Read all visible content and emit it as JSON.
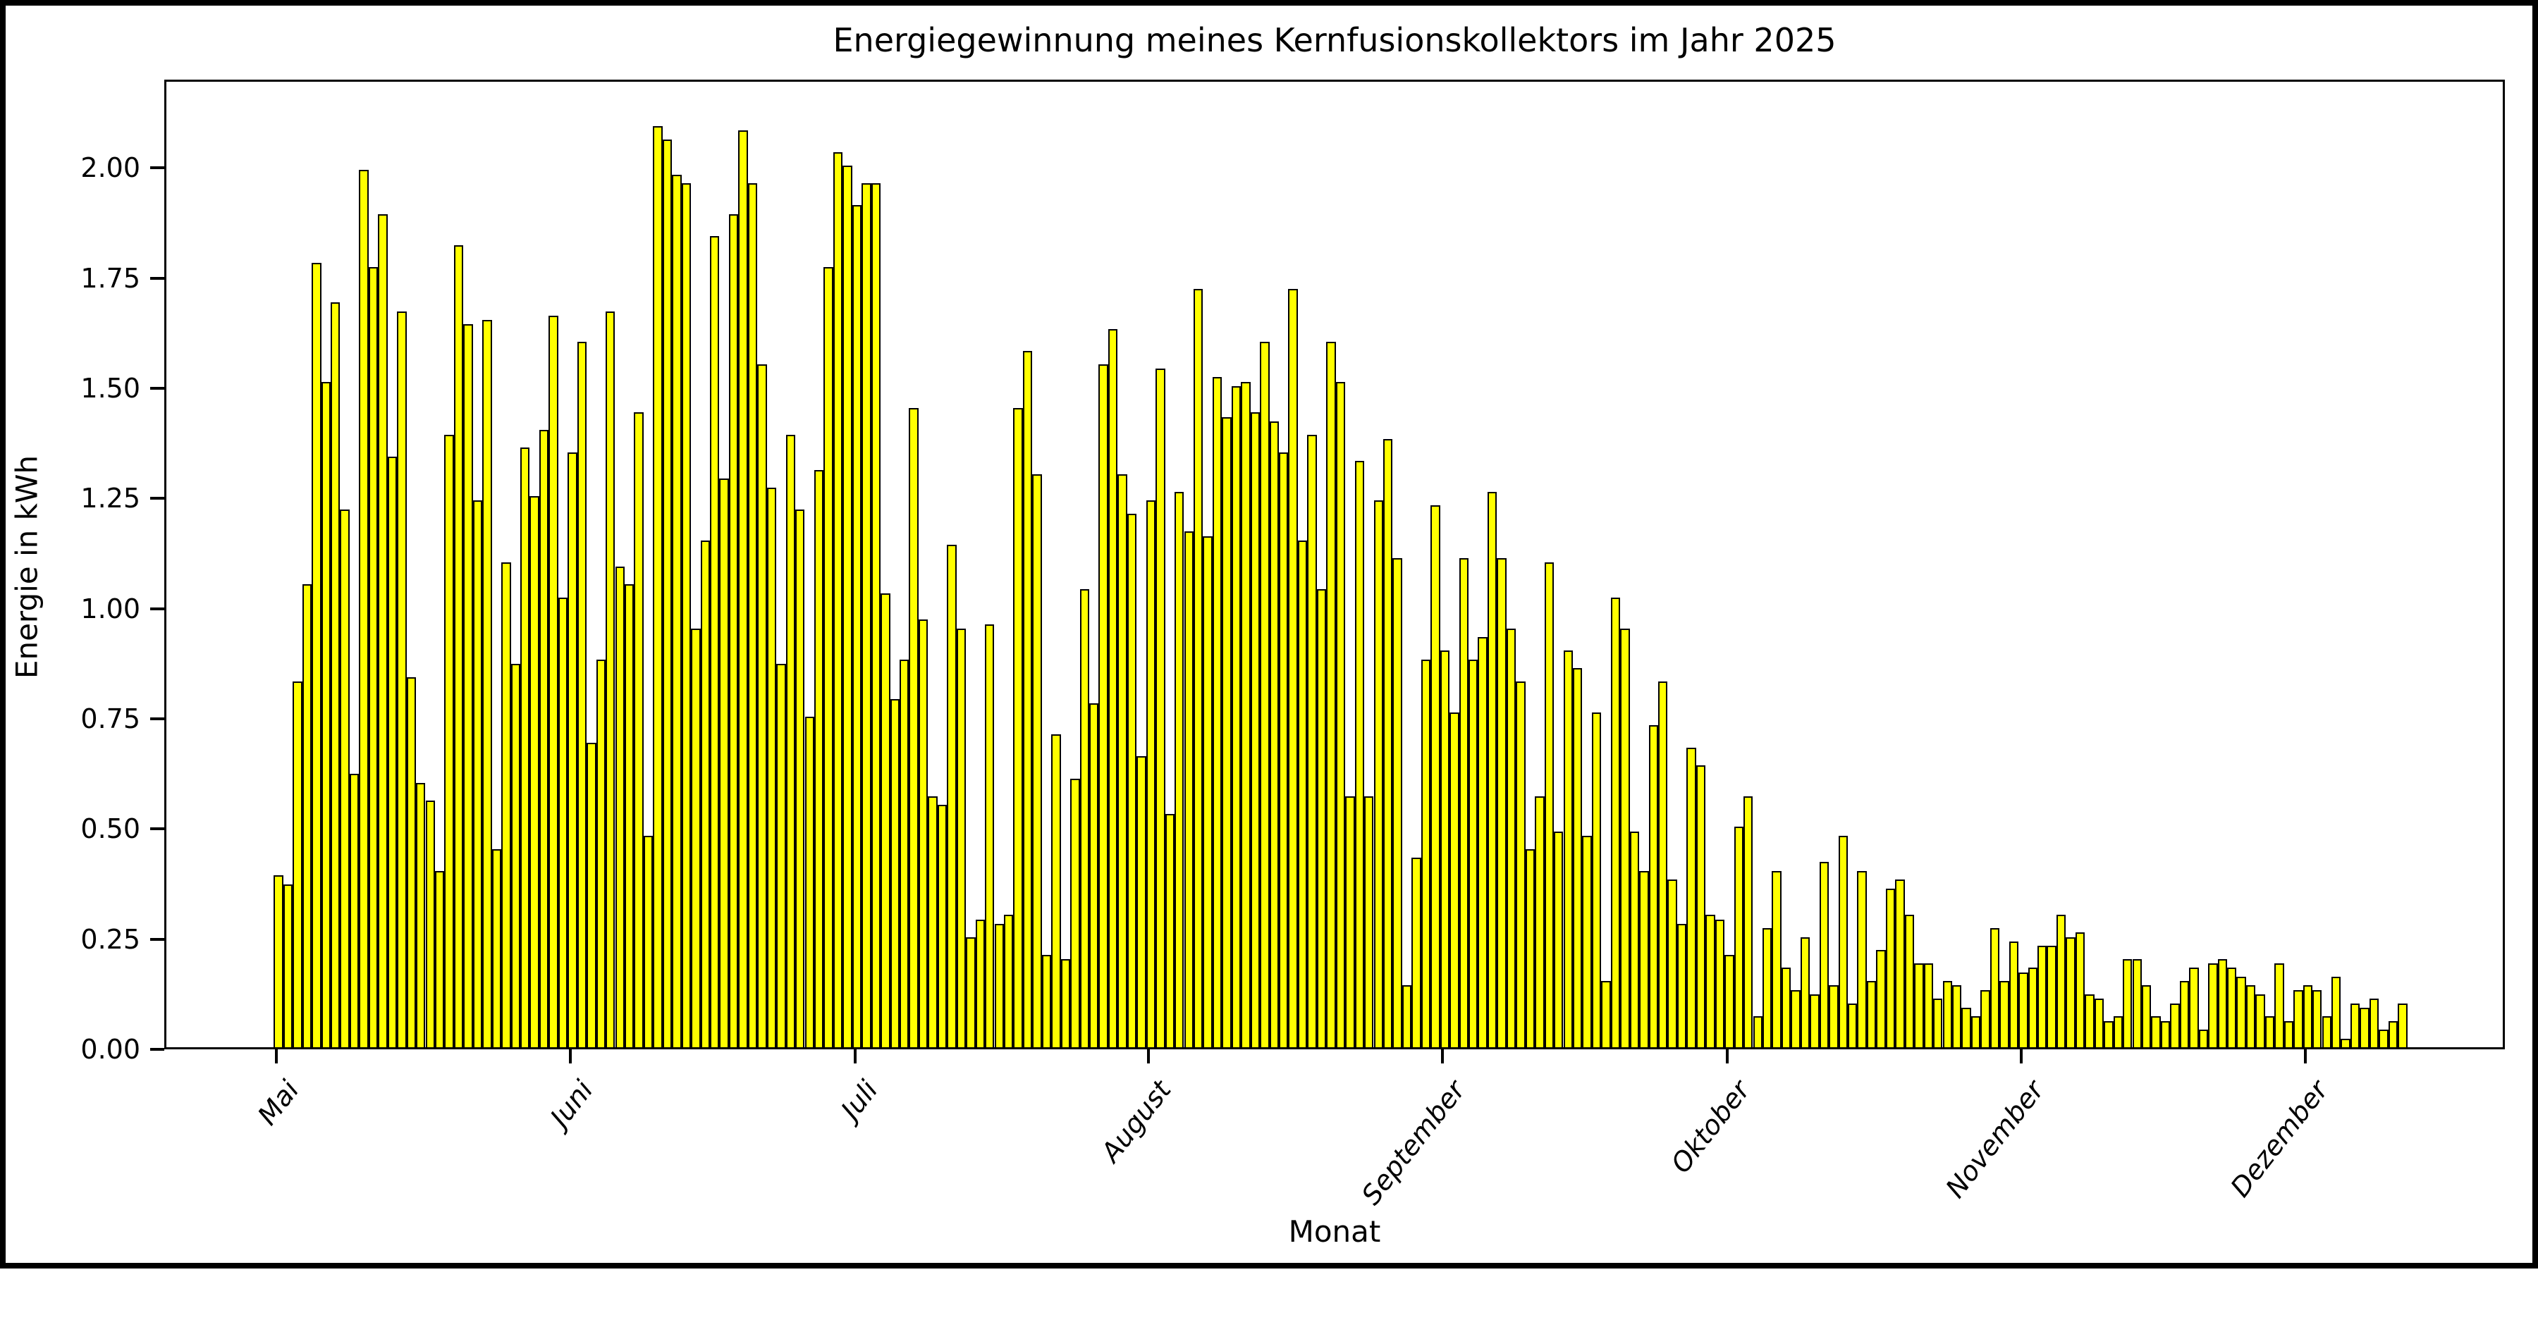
{
  "chart_data": {
    "type": "bar",
    "title": "Energiegewinnung meines Kernfusionskollektors im Jahr 2025",
    "xlabel": "Monat",
    "ylabel": "Energie in kWh",
    "unit": "kWh",
    "ylim": [
      0,
      2.2
    ],
    "ytick_labels": [
      "0.00",
      "0.25",
      "0.50",
      "0.75",
      "1.00",
      "1.25",
      "1.50",
      "1.75",
      "2.00"
    ],
    "ytick_values": [
      0,
      0.25,
      0.5,
      0.75,
      1.0,
      1.25,
      1.5,
      1.75,
      2.0
    ],
    "grid": false,
    "legend": "none",
    "bar_color": "#ffff00",
    "bar_edge_color": "#000000",
    "x_tick_labels": [
      "Mai",
      "Juni",
      "Juli",
      "August",
      "September",
      "Oktober",
      "November",
      "Dezember"
    ],
    "months": [
      {
        "label": "Mai",
        "values": [
          0.39,
          0.37,
          0.83,
          1.05,
          1.78,
          1.51,
          1.69,
          1.22,
          0.62,
          1.99,
          1.77,
          1.89,
          1.34,
          1.67,
          0.84,
          0.6,
          0.56,
          0.4,
          1.39,
          1.82,
          1.64,
          1.24,
          1.65,
          0.45,
          1.1,
          0.87,
          1.36,
          1.25,
          1.4,
          1.66,
          1.02
        ]
      },
      {
        "label": "Juni",
        "values": [
          1.35,
          1.6,
          0.69,
          0.88,
          1.67,
          1.09,
          1.05,
          1.44,
          0.48,
          2.09,
          2.06,
          1.98,
          1.96,
          0.95,
          1.15,
          1.84,
          1.29,
          1.89,
          2.08,
          1.96,
          1.55,
          1.27,
          0.87,
          1.39,
          1.22,
          0.75,
          1.31,
          1.77,
          2.03,
          2.0
        ]
      },
      {
        "label": "Juli",
        "values": [
          1.91,
          1.96,
          1.96,
          1.03,
          0.79,
          0.88,
          1.45,
          0.97,
          0.57,
          0.55,
          1.14,
          0.95,
          0.25,
          0.29,
          0.96,
          0.28,
          0.3,
          1.45,
          1.58,
          1.3,
          0.21,
          0.71,
          0.2,
          0.61,
          1.04,
          0.78,
          1.55,
          1.63,
          1.3,
          1.21,
          0.66
        ]
      },
      {
        "label": "August",
        "values": [
          1.24,
          1.54,
          0.53,
          1.26,
          1.17,
          1.72,
          1.16,
          1.52,
          1.43,
          1.5,
          1.51,
          1.44,
          1.6,
          1.42,
          1.35,
          1.72,
          1.15,
          1.39,
          1.04,
          1.6,
          1.51,
          0.57,
          1.33,
          0.57,
          1.24,
          1.38,
          1.11,
          0.14,
          0.43,
          0.88,
          1.23
        ]
      },
      {
        "label": "September",
        "values": [
          0.9,
          0.76,
          1.11,
          0.88,
          0.93,
          1.26,
          1.11,
          0.95,
          0.83,
          0.45,
          0.57,
          1.1,
          0.49,
          0.9,
          0.86,
          0.48,
          0.76,
          0.15,
          1.02,
          0.95,
          0.49,
          0.4,
          0.73,
          0.83,
          0.38,
          0.28,
          0.68,
          0.64,
          0.3,
          0.29
        ]
      },
      {
        "label": "Oktober",
        "values": [
          0.21,
          0.5,
          0.57,
          0.07,
          0.27,
          0.4,
          0.18,
          0.13,
          0.25,
          0.12,
          0.42,
          0.14,
          0.48,
          0.1,
          0.4,
          0.15,
          0.22,
          0.36,
          0.38,
          0.3,
          0.19,
          0.19,
          0.11,
          0.15,
          0.14,
          0.09,
          0.07,
          0.13,
          0.27,
          0.15,
          0.24
        ]
      },
      {
        "label": "November",
        "values": [
          0.17,
          0.18,
          0.23,
          0.23,
          0.3,
          0.25,
          0.26,
          0.12,
          0.11,
          0.06,
          0.07,
          0.2,
          0.2,
          0.14,
          0.07,
          0.06,
          0.1,
          0.15,
          0.18,
          0.04,
          0.19,
          0.2,
          0.18,
          0.16,
          0.14,
          0.12,
          0.07,
          0.19,
          0.06,
          0.13
        ]
      },
      {
        "label": "Dezember",
        "values": [
          0.14,
          0.13,
          0.07,
          0.16,
          0.02,
          0.1,
          0.09,
          0.11,
          0.04,
          0.06,
          0.1
        ]
      }
    ]
  }
}
